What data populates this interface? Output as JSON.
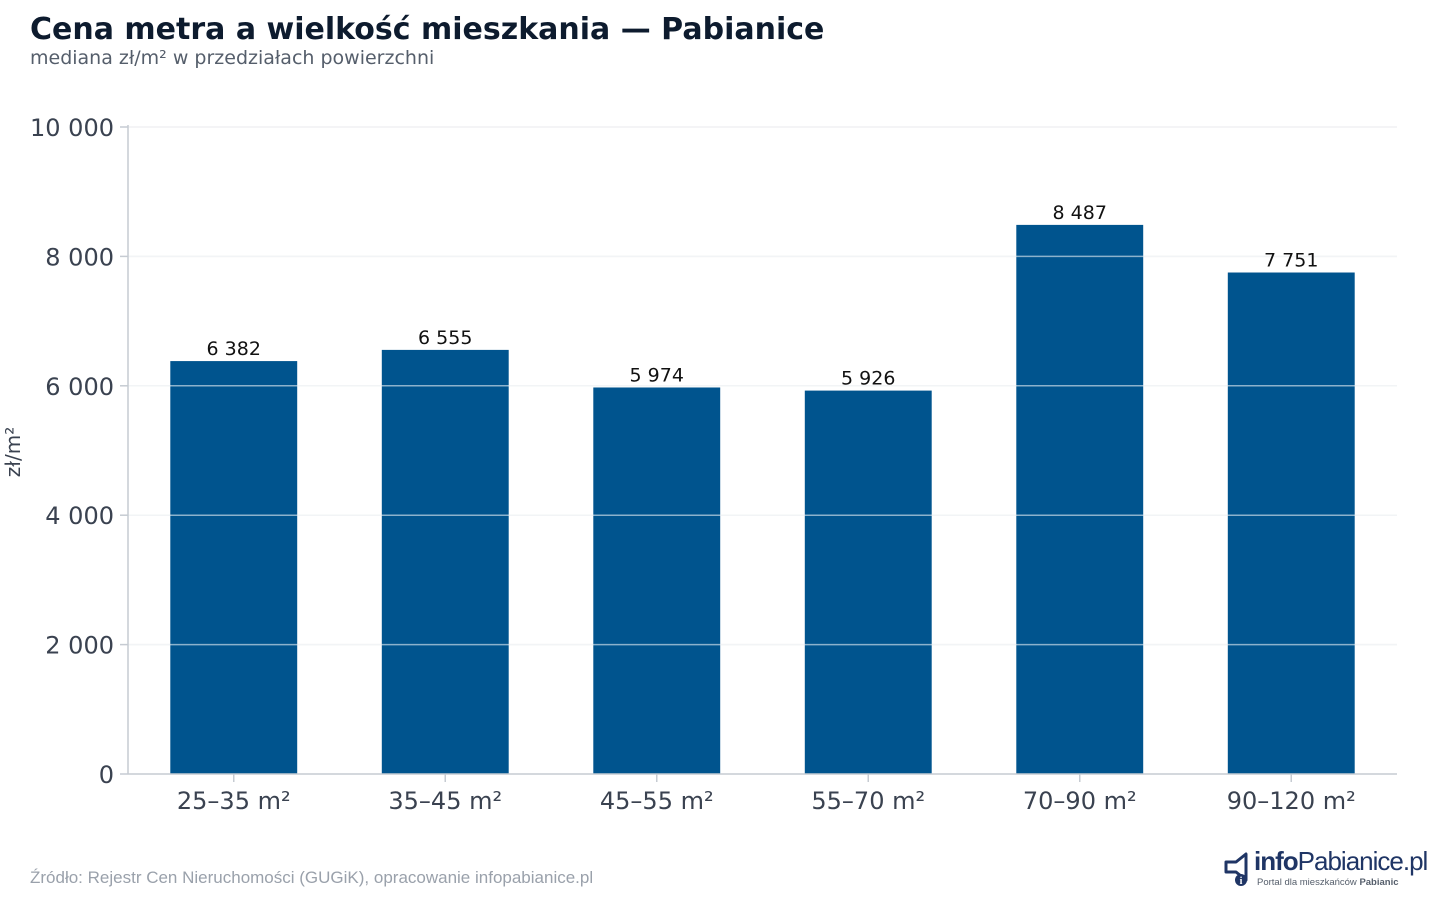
{
  "header": {
    "title": "Cena metra a wielkość mieszkania — Pabianice",
    "subtitle": "mediana zł/m² w przedziałach powierzchni"
  },
  "footer": {
    "source": "Źródło: Rejestr Cen Nieruchomości (GUGiK), opracowanie infopabianice.pl"
  },
  "logo": {
    "brand_part1": "info",
    "brand_part2": "Pabianice.pl",
    "tagline_prefix": "Portal dla mieszkańców ",
    "tagline_bold": "Pabianic"
  },
  "colors": {
    "bar": "#00548e",
    "grid": "#e3e6ea",
    "axis": "#c6cbd2",
    "title": "#0d1b2e",
    "tick_text": "#3a4250",
    "source": "#9aa1ab"
  },
  "chart_data": {
    "type": "bar",
    "title": "Cena metra a wielkość mieszkania — Pabianice",
    "subtitle": "mediana zł/m² w przedziałach powierzchni",
    "xlabel": "",
    "ylabel": "zł/m²",
    "categories": [
      "25–35 m²",
      "35–45 m²",
      "45–55 m²",
      "55–70 m²",
      "70–90 m²",
      "90–120 m²"
    ],
    "values": [
      6382,
      6555,
      5974,
      5926,
      8487,
      7751
    ],
    "value_labels": [
      "6 382",
      "6 555",
      "5 974",
      "5 926",
      "8 487",
      "7 751"
    ],
    "ylim": [
      0,
      10000
    ],
    "yticks": [
      0,
      2000,
      4000,
      6000,
      8000,
      10000
    ],
    "ytick_labels": [
      "0",
      "2 000",
      "4 000",
      "6 000",
      "8 000",
      "10 000"
    ],
    "grid": true,
    "legend": "none"
  }
}
